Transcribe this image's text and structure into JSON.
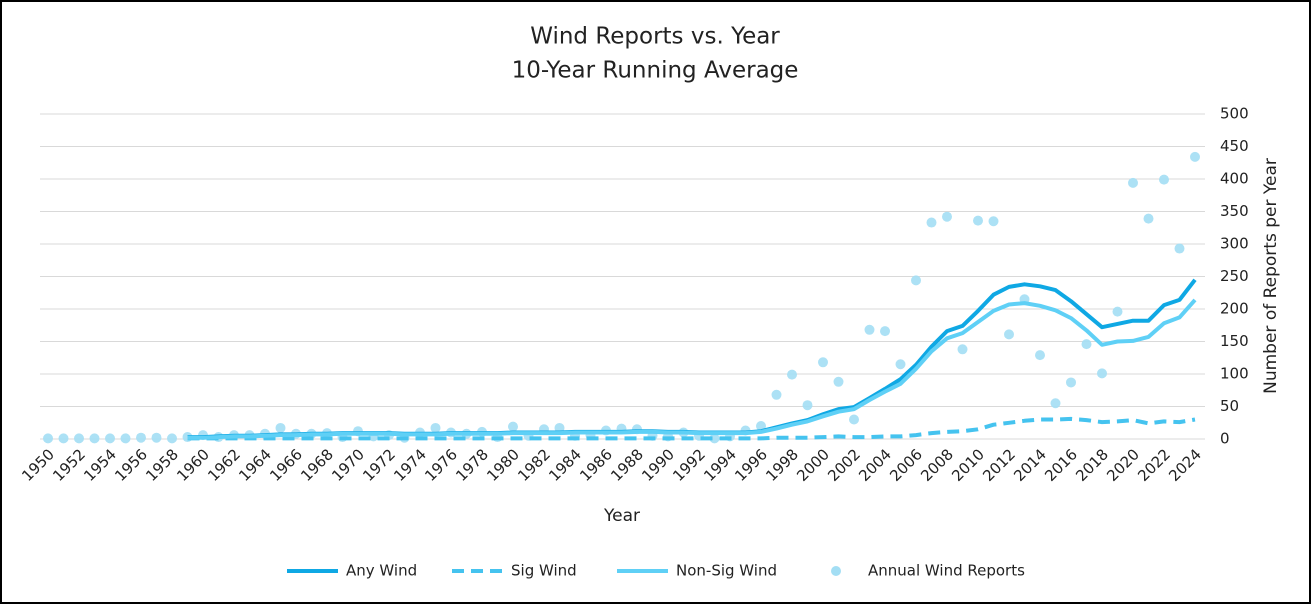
{
  "chart_data": {
    "type": "line",
    "title": "Wind Reports vs. Year",
    "subtitle": "10-Year Running Average",
    "x_label": "Year",
    "y_label": "Number of Reports per Year",
    "x": [
      1950,
      1951,
      1952,
      1953,
      1954,
      1955,
      1956,
      1957,
      1958,
      1959,
      1960,
      1961,
      1962,
      1963,
      1964,
      1965,
      1966,
      1967,
      1968,
      1969,
      1970,
      1971,
      1972,
      1973,
      1974,
      1975,
      1976,
      1977,
      1978,
      1979,
      1980,
      1981,
      1982,
      1983,
      1984,
      1985,
      1986,
      1987,
      1988,
      1989,
      1990,
      1991,
      1992,
      1993,
      1994,
      1995,
      1996,
      1997,
      1998,
      1999,
      2000,
      2001,
      2002,
      2003,
      2004,
      2005,
      2006,
      2007,
      2008,
      2009,
      2010,
      2011,
      2012,
      2013,
      2014,
      2015,
      2016,
      2017,
      2018,
      2019,
      2020,
      2021,
      2022,
      2023,
      2024
    ],
    "xlim": [
      1950,
      2024
    ],
    "xticks": [
      1950,
      1952,
      1954,
      1956,
      1958,
      1960,
      1962,
      1964,
      1966,
      1968,
      1970,
      1972,
      1974,
      1976,
      1978,
      1980,
      1982,
      1984,
      1986,
      1988,
      1990,
      1992,
      1994,
      1996,
      1998,
      2000,
      2002,
      2004,
      2006,
      2008,
      2010,
      2012,
      2014,
      2016,
      2018,
      2020,
      2022,
      2024
    ],
    "ylim": [
      0,
      500
    ],
    "yticks": [
      0,
      50,
      100,
      150,
      200,
      250,
      300,
      350,
      400,
      450,
      500
    ],
    "grid": true,
    "legend": "bottom",
    "series": [
      {
        "name": "Any Wind",
        "type": "line",
        "dash": false,
        "color": "#0fa8e4",
        "values": [
          null,
          null,
          null,
          null,
          null,
          null,
          null,
          null,
          null,
          3,
          3,
          4,
          5,
          5,
          6,
          7,
          7,
          8,
          8,
          9,
          9,
          9,
          9,
          8,
          8,
          8,
          9,
          9,
          9,
          9,
          10,
          10,
          10,
          10,
          11,
          11,
          11,
          11,
          12,
          12,
          11,
          11,
          10,
          10,
          10,
          10,
          12,
          18,
          24,
          29,
          38,
          46,
          49,
          63,
          77,
          92,
          114,
          142,
          166,
          174,
          197,
          222,
          234,
          238,
          235,
          229,
          212,
          192,
          172,
          177,
          182,
          182,
          206,
          214,
          245
        ]
      },
      {
        "name": "Sig Wind",
        "type": "line",
        "dash": true,
        "color": "#45c3ef",
        "values": [
          null,
          null,
          null,
          null,
          null,
          null,
          null,
          null,
          null,
          1,
          1,
          1,
          1,
          1,
          1,
          1,
          1,
          1,
          1,
          1,
          1,
          1,
          1,
          1,
          1,
          1,
          1,
          1,
          1,
          1,
          1,
          1,
          1,
          1,
          1,
          1,
          1,
          1,
          1,
          1,
          1,
          1,
          1,
          1,
          1,
          1,
          1,
          2,
          2,
          2,
          3,
          4,
          3,
          3,
          4,
          4,
          6,
          9,
          11,
          12,
          15,
          22,
          25,
          28,
          30,
          30,
          31,
          29,
          26,
          27,
          29,
          24,
          27,
          26,
          30
        ]
      },
      {
        "name": "Non-Sig Wind",
        "type": "line",
        "dash": false,
        "color": "#5fd0f6",
        "values": [
          null,
          null,
          null,
          null,
          null,
          null,
          null,
          null,
          null,
          2,
          2,
          3,
          4,
          4,
          5,
          6,
          6,
          7,
          7,
          8,
          8,
          8,
          8,
          7,
          7,
          7,
          8,
          8,
          8,
          8,
          9,
          9,
          9,
          9,
          10,
          10,
          10,
          10,
          11,
          11,
          10,
          10,
          9,
          9,
          9,
          9,
          11,
          16,
          22,
          27,
          35,
          42,
          46,
          60,
          73,
          85,
          108,
          135,
          155,
          163,
          180,
          197,
          207,
          209,
          205,
          198,
          186,
          167,
          145,
          150,
          151,
          157,
          178,
          187,
          214
        ]
      },
      {
        "name": "Annual Wind Reports",
        "type": "scatter",
        "color": "#a3def4",
        "values": [
          1,
          1,
          1,
          1,
          1,
          1,
          2,
          2,
          1,
          3,
          6,
          3,
          6,
          6,
          8,
          17,
          8,
          8,
          9,
          3,
          12,
          4,
          6,
          2,
          10,
          17,
          10,
          8,
          11,
          3,
          19,
          5,
          15,
          17,
          5,
          6,
          13,
          16,
          15,
          5,
          4,
          10,
          5,
          1,
          4,
          13,
          20,
          68,
          99,
          52,
          118,
          88,
          30,
          168,
          166,
          115,
          244,
          333,
          342,
          138,
          336,
          335,
          161,
          215,
          129,
          55,
          87,
          146,
          101,
          196,
          394,
          339,
          399,
          293,
          434
        ]
      }
    ]
  }
}
